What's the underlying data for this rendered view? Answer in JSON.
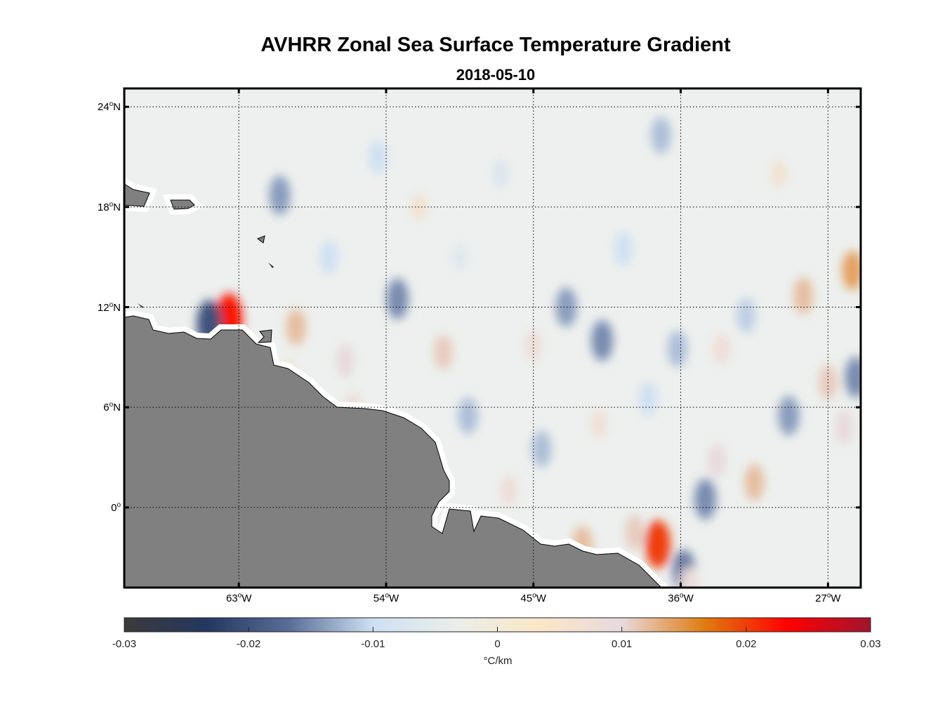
{
  "title": "AVHRR Zonal Sea Surface Temperature Gradient",
  "subtitle": "2018-05-10",
  "chart_data": {
    "type": "heatmap",
    "title": "AVHRR Zonal Sea Surface Temperature Gradient",
    "subtitle": "2018-05-10",
    "lon_range": [
      -70,
      -25
    ],
    "lat_range": [
      -4.8,
      25.1
    ],
    "grid": true,
    "x_ticks": [
      {
        "value": -63,
        "label": "63",
        "suffix": "W"
      },
      {
        "value": -54,
        "label": "54",
        "suffix": "W"
      },
      {
        "value": -45,
        "label": "45",
        "suffix": "W"
      },
      {
        "value": -36,
        "label": "36",
        "suffix": "W"
      },
      {
        "value": -27,
        "label": "27",
        "suffix": "W"
      }
    ],
    "y_ticks": [
      {
        "value": 24,
        "label": "24",
        "suffix": "N"
      },
      {
        "value": 18,
        "label": "18",
        "suffix": "N"
      },
      {
        "value": 12,
        "label": "12",
        "suffix": "N"
      },
      {
        "value": 6,
        "label": "6",
        "suffix": "N"
      },
      {
        "value": 0,
        "label": "0",
        "suffix": ""
      }
    ],
    "colorbar": {
      "range": [
        -0.03,
        0.03
      ],
      "ticks": [
        "-0.03",
        "-0.02",
        "-0.01",
        "0",
        "0.01",
        "0.02",
        "0.03"
      ],
      "label": "°C/km",
      "stops": [
        "#3a3a3a",
        "#24375f",
        "#5b6e99",
        "#cfe0f3",
        "#eaeee9",
        "#fbe7c8",
        "#e8d9dd",
        "#e07c10",
        "#ff0000",
        "#a0152f"
      ]
    },
    "features": [
      {
        "lon": -63.6,
        "lat": 11.3,
        "v": 0.022
      },
      {
        "lon": -59.5,
        "lat": 10.8,
        "v": 0.012
      },
      {
        "lon": -64.8,
        "lat": 11.0,
        "v": -0.02
      },
      {
        "lon": -56.5,
        "lat": 8.8,
        "v": 0.01
      },
      {
        "lon": -53.3,
        "lat": 12.5,
        "v": -0.015
      },
      {
        "lon": -50.5,
        "lat": 9.3,
        "v": 0.011
      },
      {
        "lon": -49,
        "lat": 5.5,
        "v": -0.012
      },
      {
        "lon": -43,
        "lat": 12,
        "v": -0.014
      },
      {
        "lon": -40.8,
        "lat": 10,
        "v": -0.015
      },
      {
        "lon": -37.4,
        "lat": -2.2,
        "v": 0.02
      },
      {
        "lon": -38.8,
        "lat": -1.5,
        "v": 0.011
      },
      {
        "lon": -35.8,
        "lat": -3.8,
        "v": -0.016
      },
      {
        "lon": -34.5,
        "lat": 0.5,
        "v": -0.015
      },
      {
        "lon": -33.8,
        "lat": 2.8,
        "v": 0.01
      },
      {
        "lon": -31.5,
        "lat": 1.5,
        "v": 0.012
      },
      {
        "lon": -28.5,
        "lat": 12.7,
        "v": 0.012
      },
      {
        "lon": -25.5,
        "lat": 14.2,
        "v": 0.014
      },
      {
        "lon": -25.3,
        "lat": 7.8,
        "v": -0.015
      },
      {
        "lon": -27,
        "lat": 7.5,
        "v": 0.011
      },
      {
        "lon": -29.4,
        "lat": 5.5,
        "v": -0.014
      },
      {
        "lon": -26,
        "lat": 4.8,
        "v": 0.01
      },
      {
        "lon": -36.2,
        "lat": 9.5,
        "v": -0.012
      },
      {
        "lon": -37.2,
        "lat": 22.3,
        "v": -0.012
      },
      {
        "lon": -54.5,
        "lat": 21,
        "v": -0.01
      },
      {
        "lon": -60.5,
        "lat": 18.7,
        "v": -0.014
      },
      {
        "lon": -44.5,
        "lat": 3.5,
        "v": -0.012
      },
      {
        "lon": -46.5,
        "lat": 1,
        "v": 0.008
      },
      {
        "lon": -42,
        "lat": -2.2,
        "v": 0.012
      },
      {
        "lon": -56,
        "lat": 6,
        "v": 0.008
      },
      {
        "lon": -35.5,
        "lat": -4.5,
        "v": 0.009
      },
      {
        "lon": -32,
        "lat": 11.5,
        "v": -0.011
      },
      {
        "lon": -38,
        "lat": 6.5,
        "v": -0.01
      },
      {
        "lon": -33.5,
        "lat": 9.5,
        "v": 0.008
      },
      {
        "lon": -45,
        "lat": 9.7,
        "v": 0.008
      },
      {
        "lon": -57.5,
        "lat": 15,
        "v": -0.01
      },
      {
        "lon": -39.5,
        "lat": 15.5,
        "v": -0.01
      },
      {
        "lon": -52,
        "lat": 18,
        "v": 0.006
      },
      {
        "lon": -47,
        "lat": 20,
        "v": -0.007
      },
      {
        "lon": -30,
        "lat": 20,
        "v": 0.006
      },
      {
        "lon": -60,
        "lat": 8,
        "v": 0.006
      },
      {
        "lon": -49.5,
        "lat": 15,
        "v": -0.006
      },
      {
        "lon": -41,
        "lat": 5,
        "v": 0.007
      }
    ]
  }
}
